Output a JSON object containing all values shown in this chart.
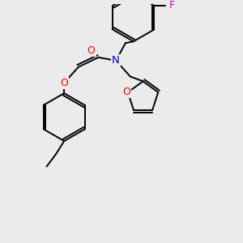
{
  "background_color": "#ebebeb",
  "atom_colors": {
    "C": "#000000",
    "N": "#0000cc",
    "O": "#ff0000",
    "F": "#cc00cc"
  },
  "bond_color": "#000000",
  "bond_width": 1.4,
  "figsize": [
    3.0,
    3.0
  ],
  "dpi": 100
}
